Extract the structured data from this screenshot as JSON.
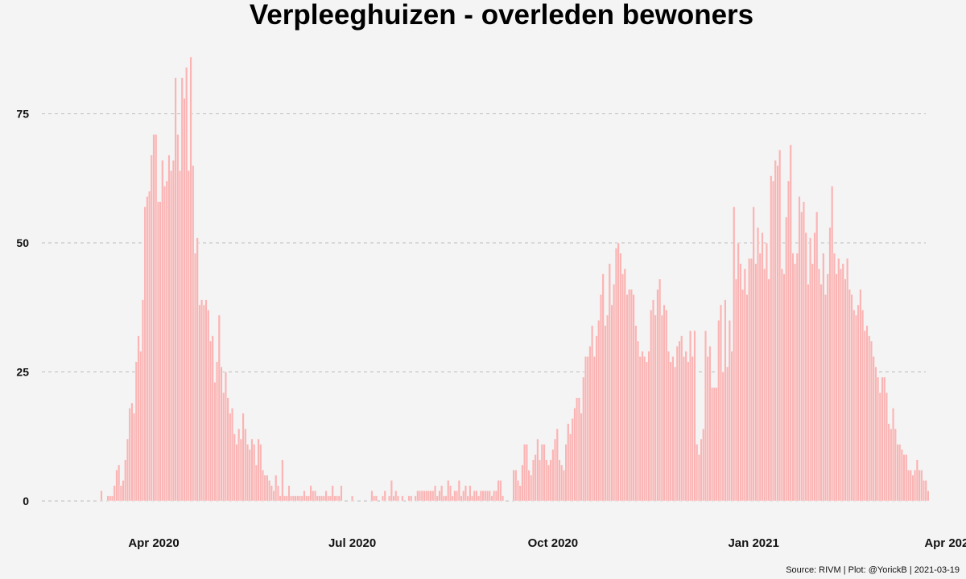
{
  "chart_data": {
    "type": "bar",
    "title": "Verpleeghuizen - overleden bewoners",
    "caption": "Source: RIVM | Plot: @YorickB |  2021-03-19",
    "xlabel": "",
    "ylabel": "",
    "x_start": "2020-03-01",
    "ylim": [
      0,
      87
    ],
    "y_ticks": [
      0,
      25,
      50,
      75
    ],
    "x_ticks": [
      {
        "date": "2020-04-01",
        "label": "Apr 2020"
      },
      {
        "date": "2020-07-01",
        "label": "Jul 2020"
      },
      {
        "date": "2020-10-01",
        "label": "Oct 2020"
      },
      {
        "date": "2021-01-01",
        "label": "Jan 2021"
      },
      {
        "date": "2021-04-01",
        "label": "Apr 2021"
      }
    ],
    "x_range": [
      "2020-02-14",
      "2021-04-01"
    ],
    "grid": "horizontal-dashed",
    "color": "#fbb4b4",
    "values": [
      0,
      0,
      0,
      0,
      0,
      0,
      0,
      2,
      0,
      0,
      1,
      1,
      1,
      3,
      6,
      7,
      3,
      4,
      8,
      12,
      18,
      19,
      17,
      27,
      32,
      29,
      39,
      57,
      59,
      60,
      67,
      71,
      71,
      58,
      58,
      66,
      61,
      62,
      67,
      64,
      66,
      82,
      71,
      64,
      82,
      78,
      84,
      64,
      86,
      65,
      48,
      51,
      38,
      39,
      38,
      39,
      37,
      31,
      32,
      23,
      27,
      36,
      26,
      21,
      25,
      20,
      17,
      18,
      13,
      11,
      14,
      12,
      17,
      14,
      11,
      10,
      12,
      11,
      7,
      12,
      11,
      6,
      5,
      5,
      4,
      3,
      2,
      5,
      3,
      1,
      8,
      1,
      1,
      3,
      1,
      1,
      1,
      1,
      1,
      1,
      2,
      1,
      1,
      3,
      2,
      2,
      1,
      1,
      1,
      1,
      2,
      1,
      1,
      3,
      1,
      1,
      1,
      3,
      0,
      0,
      0,
      0,
      1,
      0,
      0,
      0,
      0,
      0,
      0,
      0,
      0,
      2,
      1,
      1,
      0,
      0,
      1,
      2,
      0,
      1,
      4,
      1,
      2,
      1,
      0,
      1,
      0,
      0,
      1,
      1,
      0,
      1,
      2,
      2,
      2,
      2,
      2,
      2,
      2,
      2,
      3,
      1,
      2,
      3,
      1,
      1,
      4,
      3,
      1,
      2,
      2,
      4,
      1,
      2,
      3,
      1,
      3,
      1,
      2,
      2,
      1,
      2,
      2,
      2,
      2,
      2,
      1,
      2,
      2,
      4,
      4,
      1,
      0,
      0,
      0,
      0,
      6,
      6,
      4,
      3,
      7,
      11,
      11,
      6,
      5,
      8,
      9,
      12,
      8,
      11,
      11,
      8,
      7,
      8,
      10,
      12,
      14,
      8,
      7,
      6,
      11,
      15,
      13,
      16,
      18,
      20,
      20,
      17,
      24,
      28,
      28,
      30,
      34,
      28,
      32,
      35,
      40,
      44,
      34,
      36,
      46,
      38,
      42,
      49,
      50,
      48,
      44,
      45,
      40,
      41,
      41,
      40,
      34,
      31,
      28,
      29,
      28,
      27,
      29,
      37,
      39,
      36,
      41,
      43,
      36,
      38,
      37,
      29,
      27,
      28,
      26,
      30,
      31,
      32,
      28,
      29,
      27,
      33,
      28,
      33,
      11,
      9,
      12,
      14,
      33,
      28,
      30,
      22,
      22,
      22,
      35,
      38,
      25,
      39,
      26,
      35,
      29,
      57,
      43,
      50,
      46,
      41,
      45,
      40,
      47,
      47,
      57,
      46,
      53,
      48,
      52,
      45,
      50,
      43,
      63,
      62,
      66,
      65,
      68,
      45,
      44,
      55,
      62,
      69,
      48,
      46,
      48,
      59,
      56,
      58,
      52,
      42,
      51,
      46,
      52,
      56,
      45,
      42,
      48,
      40,
      44,
      53,
      61,
      48,
      44,
      47,
      45,
      46,
      43,
      47,
      41,
      40,
      37,
      36,
      38,
      41,
      37,
      33,
      34,
      32,
      31,
      28,
      26,
      24,
      21,
      24,
      24,
      21,
      15,
      14,
      18,
      14,
      11,
      11,
      10,
      9,
      9,
      6,
      6,
      5,
      6,
      8,
      6,
      6,
      4,
      4,
      2
    ]
  }
}
